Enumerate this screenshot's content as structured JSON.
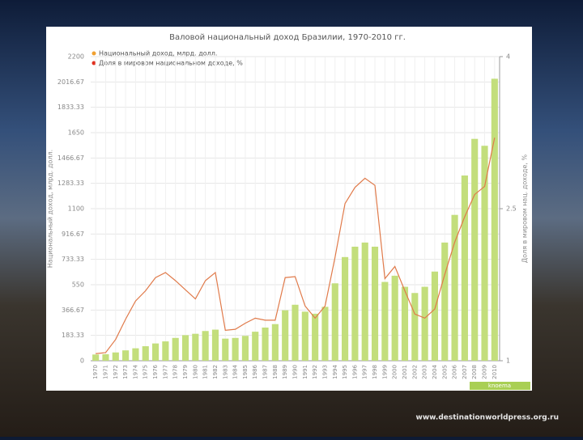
{
  "chart_data": {
    "type": "bar_line",
    "title": "Валовой национальный доход Бразилии, 1970-2010 гг.",
    "ylabel": "Национальный доход, млрд. долл.",
    "y2label": "Доля в мировом нац. доходе, %",
    "source": "knoema",
    "categories": [
      "1970",
      "1971",
      "1972",
      "1973",
      "1974",
      "1975",
      "1976",
      "1977",
      "1978",
      "1979",
      "1980",
      "1981",
      "1982",
      "1983",
      "1984",
      "1985",
      "1986",
      "1987",
      "1988",
      "1989",
      "1990",
      "1991",
      "1992",
      "1993",
      "1994",
      "1995",
      "1996",
      "1997",
      "1998",
      "1999",
      "2000",
      "2001",
      "2002",
      "2003",
      "2004",
      "2005",
      "2006",
      "2007",
      "2008",
      "2009",
      "2010"
    ],
    "series": [
      {
        "name": "Национальный доход, млрд. долл.",
        "color": "#c3de7c",
        "type": "bar",
        "values": [
          45,
          47,
          60,
          75,
          90,
          105,
          125,
          140,
          165,
          185,
          195,
          215,
          225,
          160,
          165,
          180,
          210,
          240,
          265,
          365,
          405,
          355,
          340,
          390,
          560,
          750,
          825,
          855,
          825,
          570,
          615,
          535,
          490,
          535,
          645,
          855,
          1055,
          1340,
          1605,
          1555,
          2040
        ]
      },
      {
        "name": "Доля в мировом национальном доходе, %",
        "color": "#e07a4a",
        "type": "line",
        "axis": "y2",
        "values": [
          1.07,
          1.08,
          1.21,
          1.41,
          1.59,
          1.69,
          1.82,
          1.87,
          1.79,
          1.7,
          1.61,
          1.79,
          1.87,
          1.3,
          1.31,
          1.37,
          1.42,
          1.4,
          1.4,
          1.82,
          1.83,
          1.54,
          1.42,
          1.54,
          2.02,
          2.55,
          2.71,
          2.8,
          2.73,
          1.81,
          1.93,
          1.69,
          1.46,
          1.42,
          1.51,
          1.85,
          2.17,
          2.42,
          2.64,
          2.72,
          3.2
        ]
      }
    ],
    "ylim": [
      0,
      2200
    ],
    "yticks": [
      0,
      183.33,
      366.67,
      550,
      733.33,
      916.67,
      1100,
      1283.33,
      1466.67,
      1650,
      1833.33,
      2016.67,
      2200
    ],
    "y2lim": [
      1,
      4
    ],
    "y2ticks": [
      1,
      2.5,
      4
    ],
    "grid": true
  },
  "watermark": "www.destinationworldpress.org.ru"
}
